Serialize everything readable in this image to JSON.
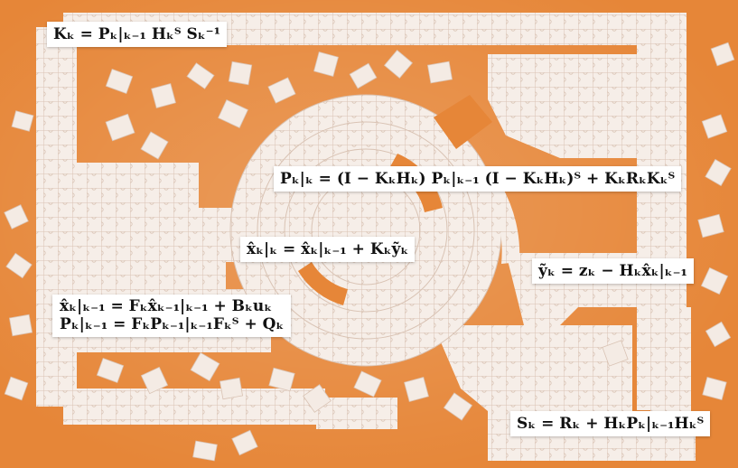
{
  "palette": {
    "background_orange": "#e8893a",
    "puzzle_white": "#f6eee8",
    "puzzle_shadow": "#d9c3b4"
  },
  "equations": {
    "gain": "Kₖ = Pₖ|ₖ₋₁ Hₖᵀ Sₖ⁻¹",
    "covariance_update": "Pₖ|ₖ = (I − KₖHₖ) Pₖ|ₖ₋₁ (I − KₖHₖ)ᵀ + KₖRₖKₖᵀ",
    "state_update": "x̂ₖ|ₖ = x̂ₖ|ₖ₋₁ + Kₖỹₖ",
    "innovation": "ỹₖ = zₖ − Hₖx̂ₖ|ₖ₋₁",
    "state_predict": "x̂ₖ|ₖ₋₁ = Fₖx̂ₖ₋₁|ₖ₋₁ + Bₖuₖ",
    "covariance_predict": "Pₖ|ₖ₋₁ = FₖPₖ₋₁|ₖ₋₁Fₖᵀ + Qₖ",
    "innovation_covariance": "Sₖ = Rₖ + HₖPₖ|ₖ₋₁Hₖᵀ"
  }
}
